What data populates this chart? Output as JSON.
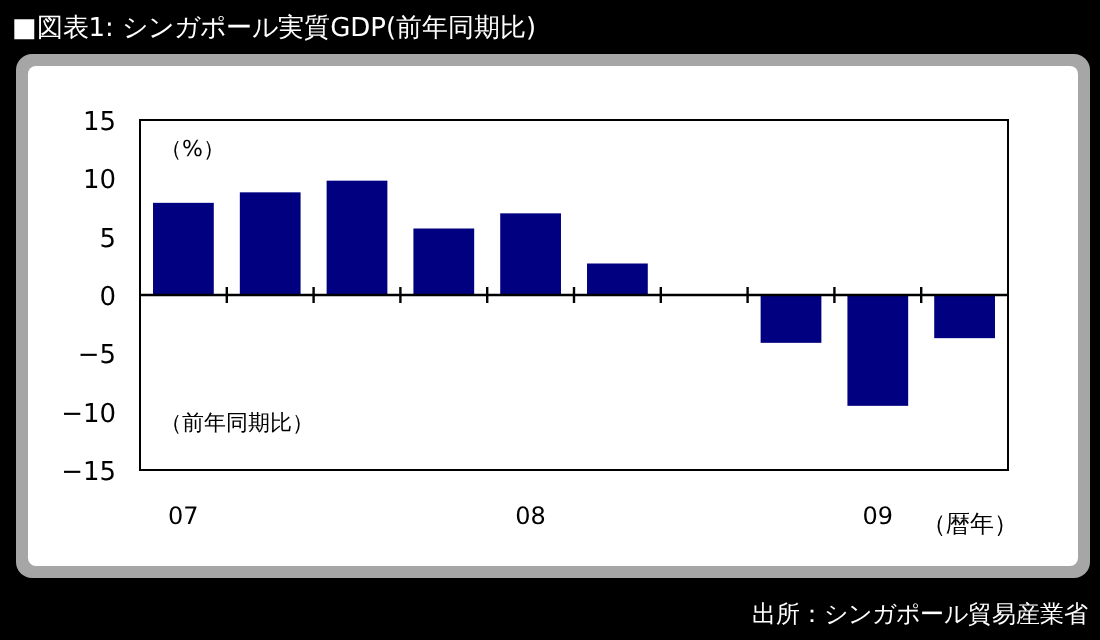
{
  "chart_data": {
    "type": "bar",
    "title": "■図表1: シンガポール実質GDP(前年同期比)",
    "xlabel": "（暦年）",
    "annotations": [
      "（%）",
      "（前年同期比）",
      "出所：シンガポール貿易産業省"
    ],
    "categories": [
      "07",
      null,
      null,
      null,
      "08",
      null,
      null,
      null,
      "09",
      null
    ],
    "values": [
      7.9,
      8.8,
      9.8,
      5.7,
      7.0,
      2.7,
      0,
      -4.1,
      -9.5,
      -3.7
    ],
    "color": "#000080",
    "ylim": [
      -15,
      15
    ],
    "yticks": [
      -15,
      -10,
      -5,
      0,
      5,
      10,
      15
    ]
  }
}
